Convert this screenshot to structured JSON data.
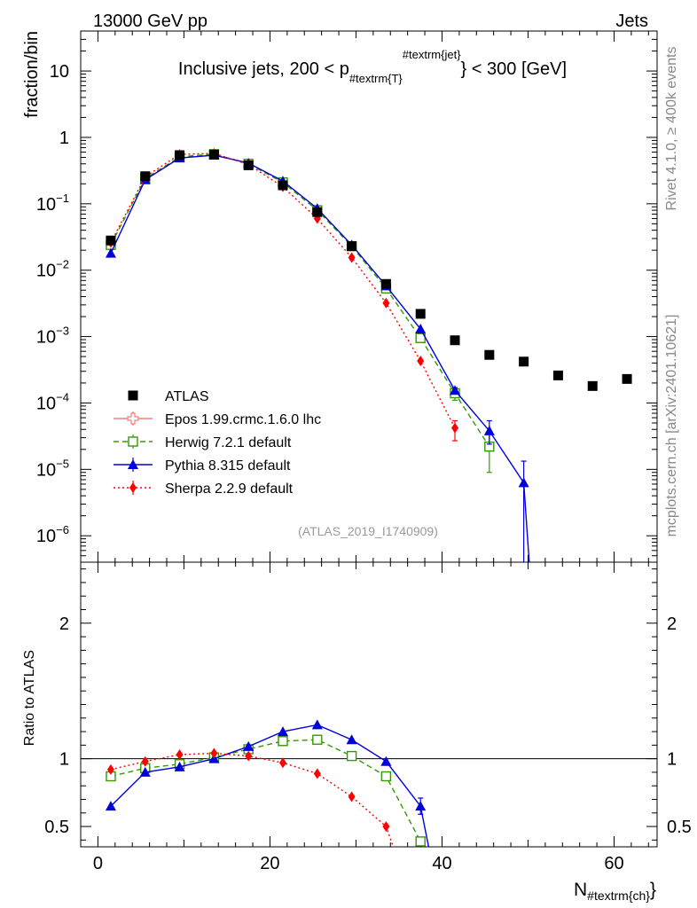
{
  "header": {
    "left_label": "13000 GeV pp",
    "right_label": "Jets"
  },
  "side_labels": {
    "rivet": "Rivet 4.1.0, ≥ 400k events",
    "mcplots": "mcplots.cern.ch [arXiv:2401.10621]"
  },
  "chart_data": [
    {
      "type": "scatter",
      "panel": "main",
      "title": "Inclusive jets, 200 < p",
      "title_sub": "#textrm{T}",
      "title_sup": "#textrm{jet}",
      "title_end": "} < 300 [GeV]",
      "watermark": "(ATLAS_2019_I1740909)",
      "xlabel": "N",
      "xlabel_sub": "#textrm{ch}",
      "xlabel_end": "}",
      "ylabel": "fraction/bin",
      "xlim": [
        -2,
        65
      ],
      "ylim": [
        4e-07,
        40
      ],
      "yscale": "log",
      "x_ticks": [
        0,
        20,
        40,
        60
      ],
      "x_tick_labels": [
        "0",
        "20",
        "40",
        "60"
      ],
      "y_tick_labels": [
        {
          "value": 10,
          "base": "10",
          "exp": ""
        },
        {
          "value": 1,
          "base": "1",
          "exp": ""
        },
        {
          "value": 0.1,
          "base": "10",
          "exp": "−1"
        },
        {
          "value": 0.01,
          "base": "10",
          "exp": "−2"
        },
        {
          "value": 0.001,
          "base": "10",
          "exp": "−3"
        },
        {
          "value": 0.0001,
          "base": "10",
          "exp": "−4"
        },
        {
          "value": 1e-05,
          "base": "10",
          "exp": "−5"
        },
        {
          "value": 1e-06,
          "base": "10",
          "exp": "−6"
        }
      ],
      "legend_position": "lower-left",
      "series": [
        {
          "name": "ATLAS",
          "color": "#000000",
          "marker": "square",
          "line": "none",
          "x": [
            1.5,
            5.5,
            9.5,
            13.5,
            17.5,
            21.5,
            25.5,
            29.5,
            33.5,
            37.5,
            41.5,
            45.5,
            49.5,
            53.5,
            57.5,
            61.5
          ],
          "y": [
            0.028,
            0.26,
            0.54,
            0.55,
            0.38,
            0.19,
            0.075,
            0.023,
            0.0062,
            0.0022,
            0.00088,
            0.00053,
            0.00042,
            0.00026,
            0.00018,
            0.00023
          ]
        },
        {
          "name": "Epos 1.99.crmc.1.6.0 lhc",
          "color": "#f08080",
          "marker": "open-cross",
          "line": "solid",
          "x": [],
          "y": []
        },
        {
          "name": "Herwig 7.2.1 default",
          "color": "#339900",
          "marker": "open-square",
          "line": "dashed",
          "x": [
            1.5,
            5.5,
            9.5,
            13.5,
            17.5,
            21.5,
            25.5,
            29.5,
            33.5,
            37.5,
            41.5,
            45.5
          ],
          "y": [
            0.024,
            0.24,
            0.51,
            0.56,
            0.4,
            0.21,
            0.08,
            0.023,
            0.0053,
            0.00095,
            0.00014,
            2.2e-05
          ],
          "yerr_low": [
            0,
            0,
            0,
            0,
            0,
            0,
            0,
            0,
            0,
            0,
            3e-05,
            1.3e-05
          ],
          "yerr_high": [
            0,
            0,
            0,
            0,
            0,
            0,
            0,
            0,
            0,
            0,
            3e-05,
            1.3e-05
          ]
        },
        {
          "name": "Pythia 8.315 default",
          "color": "#0000dd",
          "marker": "triangle",
          "line": "solid",
          "x": [
            1.5,
            5.5,
            9.5,
            13.5,
            17.5,
            21.5,
            25.5,
            29.5,
            33.5,
            37.5,
            41.5,
            45.5,
            49.5,
            50.2
          ],
          "y": [
            0.018,
            0.23,
            0.49,
            0.54,
            0.41,
            0.22,
            0.085,
            0.024,
            0.0058,
            0.0013,
            0.000155,
            3.8e-05,
            6.3e-06,
            3e-07
          ],
          "yerr_low": [
            0,
            0,
            0,
            0,
            0,
            0,
            0,
            0,
            0,
            0,
            1.5e-05,
            1.4e-05,
            6e-06,
            0
          ],
          "yerr_high": [
            0,
            0,
            0,
            0,
            0,
            0,
            0,
            0,
            0,
            0,
            1.5e-05,
            1.6e-05,
            7e-06,
            0
          ]
        },
        {
          "name": "Sherpa 2.2.9 default",
          "color": "#ff0000",
          "marker": "diamond",
          "line": "dotted",
          "x": [
            1.5,
            5.5,
            9.5,
            13.5,
            17.5,
            21.5,
            25.5,
            29.5,
            33.5,
            37.5,
            41.5
          ],
          "y": [
            0.026,
            0.255,
            0.555,
            0.575,
            0.39,
            0.18,
            0.06,
            0.0155,
            0.0032,
            0.00043,
            4.2e-05
          ],
          "yerr_low": [
            0,
            0,
            0,
            0,
            0,
            0,
            0,
            0,
            0,
            0,
            1.5e-05
          ],
          "yerr_high": [
            0,
            0,
            0,
            0,
            0,
            0,
            0,
            0,
            0,
            0,
            1.2e-05
          ]
        }
      ]
    },
    {
      "type": "line",
      "panel": "ratio",
      "ylabel": "Ratio to ATLAS",
      "xlim": [
        -2,
        65
      ],
      "ylim": [
        0.35,
        2.45
      ],
      "reference_line": 1,
      "y_ticks": [
        0.5,
        1,
        2
      ],
      "y_tick_labels": [
        "0.5",
        "1",
        "2"
      ],
      "series": [
        {
          "name": "Herwig 7.2.1 default",
          "color": "#339900",
          "marker": "open-square",
          "line": "dashed",
          "x": [
            1.5,
            5.5,
            9.5,
            13.5,
            17.5,
            21.5,
            25.5,
            29.5,
            33.5,
            37.5,
            38.3
          ],
          "y": [
            0.87,
            0.93,
            0.96,
            1.01,
            1.07,
            1.13,
            1.14,
            1.02,
            0.87,
            0.39,
            0.3
          ]
        },
        {
          "name": "Pythia 8.315 default",
          "color": "#0000dd",
          "marker": "triangle",
          "line": "solid",
          "x": [
            1.5,
            5.5,
            9.5,
            13.5,
            17.5,
            21.5,
            25.5,
            29.5,
            33.5,
            37.5,
            38.6
          ],
          "y": [
            0.65,
            0.9,
            0.94,
            1.0,
            1.09,
            1.2,
            1.25,
            1.14,
            0.98,
            0.65,
            0.3
          ],
          "yerr_low": [
            0,
            0,
            0,
            0,
            0,
            0,
            0,
            0,
            0,
            0.06,
            0
          ],
          "yerr_high": [
            0,
            0,
            0,
            0,
            0,
            0,
            0,
            0,
            0,
            0.06,
            0
          ]
        },
        {
          "name": "Sherpa 2.2.9 default",
          "color": "#ff0000",
          "marker": "diamond",
          "line": "dotted",
          "x": [
            1.5,
            5.5,
            9.5,
            13.5,
            17.5,
            21.5,
            25.5,
            29.5,
            33.5,
            34.6
          ],
          "y": [
            0.92,
            0.98,
            1.03,
            1.04,
            1.02,
            0.97,
            0.89,
            0.72,
            0.5,
            0.3
          ]
        }
      ]
    }
  ]
}
